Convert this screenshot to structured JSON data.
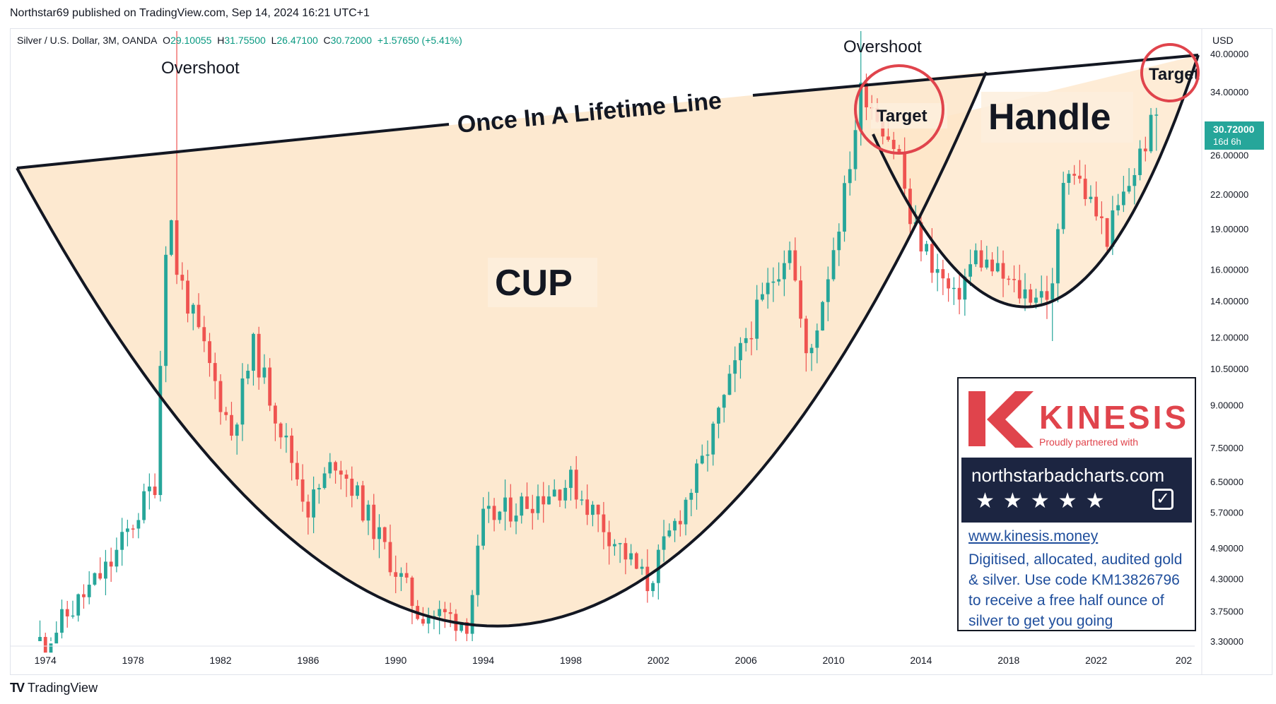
{
  "header": {
    "published": "Northstar69 published on TradingView.com, Sep 14, 2024 16:21 UTC+1"
  },
  "legend": {
    "symbol": "Silver / U.S. Dollar, 3M, OANDA",
    "o_label": "O",
    "o_value": "29.10055",
    "h_label": "H",
    "h_value": "31.75500",
    "l_label": "L",
    "l_value": "26.47100",
    "c_label": "C",
    "c_value": "30.72000",
    "change": "+1.57650 (+5.41%)"
  },
  "price_axis": {
    "currency": "USD",
    "last_price": "30.72000",
    "countdown": "16d 6h"
  },
  "annotations": {
    "overshoot_1": "Overshoot",
    "overshoot_2": "Overshoot",
    "lifetime_line": "Once In A Lifetime Line",
    "cup": "CUP",
    "handle": "Handle",
    "target_1": "Target",
    "target_2": "Target"
  },
  "ad": {
    "brand": "KINESIS",
    "partner": "Proudly partnered with",
    "site": "northstarbadcharts.com",
    "stars": "★★★★★",
    "link": "www.kinesis.money",
    "copy": "Digitised, allocated, audited gold & silver. Use code KM13826796 to receive a free half ounce of silver to get you going"
  },
  "footer": {
    "logo": "TradingView"
  },
  "colors": {
    "up": "#26a69a",
    "down": "#ef5350",
    "cup_fill": "#fde5c8",
    "circle": "#e0444c",
    "kinesis_red": "#e0444c",
    "band_navy": "#1c2541"
  },
  "chart_data": {
    "type": "candlestick",
    "title": "Silver / U.S. Dollar, 3M, OANDA",
    "timeframe": "3M",
    "scale": "log",
    "ylim": [
      3.3,
      44
    ],
    "x_range": [
      1972.7,
      2026.5
    ],
    "x_ticks": [
      "1974",
      "1978",
      "1982",
      "1986",
      "1990",
      "1994",
      "1998",
      "2002",
      "2006",
      "2010",
      "2014",
      "2018",
      "2022",
      "202"
    ],
    "y_ticks": [
      "40.00000",
      "34.00000",
      "26.00000",
      "22.00000",
      "19.00000",
      "16.00000",
      "14.00000",
      "12.00000",
      "10.50000",
      "9.00000",
      "7.50000",
      "6.50000",
      "5.70000",
      "4.90000",
      "4.30000",
      "3.75000",
      "3.30000"
    ],
    "last": {
      "open": 29.10055,
      "high": 31.755,
      "low": 26.471,
      "close": 30.72
    },
    "key_points": [
      {
        "year": 1974.0,
        "close": 3.3
      },
      {
        "year": 1977.0,
        "close": 4.6
      },
      {
        "year": 1979.0,
        "close": 6.5
      },
      {
        "year": 1979.6,
        "close": 22.0
      },
      {
        "year": 1980.0,
        "high": 48.0,
        "close": 16.0
      },
      {
        "year": 1982.5,
        "close": 8.0
      },
      {
        "year": 1983.5,
        "close": 11.5
      },
      {
        "year": 1986.0,
        "close": 5.8
      },
      {
        "year": 1987.3,
        "close": 7.2
      },
      {
        "year": 1991.0,
        "close": 3.75
      },
      {
        "year": 1993.3,
        "close": 3.6
      },
      {
        "year": 1994.0,
        "close": 5.5
      },
      {
        "year": 1998.0,
        "close": 6.5
      },
      {
        "year": 2001.5,
        "close": 4.2
      },
      {
        "year": 2004.0,
        "close": 7.0
      },
      {
        "year": 2006.0,
        "close": 12.0
      },
      {
        "year": 2008.0,
        "close": 18.0
      },
      {
        "year": 2008.8,
        "close": 10.5
      },
      {
        "year": 2010.5,
        "close": 22.0
      },
      {
        "year": 2011.3,
        "high": 48.0,
        "close": 35.0
      },
      {
        "year": 2013.0,
        "close": 26.0
      },
      {
        "year": 2013.5,
        "close": 19.5
      },
      {
        "year": 2015.5,
        "close": 14.0
      },
      {
        "year": 2016.5,
        "close": 17.0
      },
      {
        "year": 2018.5,
        "close": 14.5
      },
      {
        "year": 2020.0,
        "low": 11.8,
        "close": 14.5
      },
      {
        "year": 2020.6,
        "close": 26.0
      },
      {
        "year": 2022.5,
        "close": 18.5
      },
      {
        "year": 2023.5,
        "close": 23.0
      },
      {
        "year": 2024.7,
        "close": 30.72
      }
    ]
  }
}
